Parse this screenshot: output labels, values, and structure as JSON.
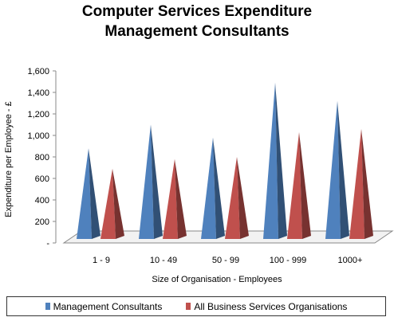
{
  "chart_data": {
    "type": "bar",
    "title_line1": "Computer Services Expenditure",
    "title_line2": "Management Consultants",
    "xlabel": "Size of Organisation - Employees",
    "ylabel": "Expenditure per Employee - £",
    "categories": [
      "1 - 9",
      "10 - 49",
      "50 - 99",
      "100 - 999",
      "1000+"
    ],
    "series": [
      {
        "name": "Management Consultants",
        "values": [
          880,
          1100,
          980,
          1490,
          1320
        ],
        "color": "#4f81bd"
      },
      {
        "name": "All Business Services Organisations",
        "values": [
          690,
          780,
          800,
          1030,
          1060
        ],
        "color": "#c0504d"
      }
    ],
    "yticks": [
      "-",
      "200",
      "400",
      "600",
      "800",
      "1,000",
      "1,200",
      "1,400",
      "1,600"
    ],
    "ylim": [
      0,
      1600
    ],
    "bar_shape": "3d-cone",
    "legend_position": "bottom"
  }
}
